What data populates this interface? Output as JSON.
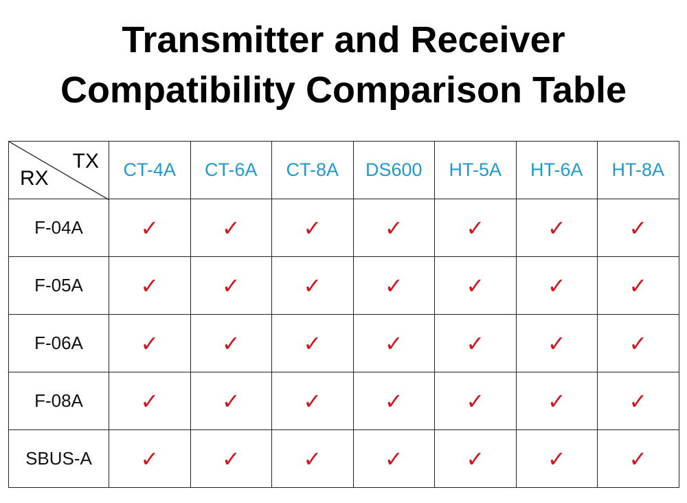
{
  "header": {
    "title_lines": [
      "Transmitter and Receiver",
      "Compatibility Comparison Table"
    ]
  },
  "table": {
    "corner_tx": "TX",
    "corner_rx": "RX",
    "columns": [
      "CT-4A",
      "CT-6A",
      "CT-8A",
      "DS600",
      "HT-5A",
      "HT-6A",
      "HT-8A"
    ],
    "rows": [
      {
        "label": "F-04A",
        "cells": [
          "✓",
          "✓",
          "✓",
          "✓",
          "✓",
          "✓",
          "✓"
        ]
      },
      {
        "label": "F-05A",
        "cells": [
          "✓",
          "✓",
          "✓",
          "✓",
          "✓",
          "✓",
          "✓"
        ]
      },
      {
        "label": "F-06A",
        "cells": [
          "✓",
          "✓",
          "✓",
          "✓",
          "✓",
          "✓",
          "✓"
        ]
      },
      {
        "label": "F-08A",
        "cells": [
          "✓",
          "✓",
          "✓",
          "✓",
          "✓",
          "✓",
          "✓"
        ]
      },
      {
        "label": "SBUS-A",
        "cells": [
          "✓",
          "✓",
          "✓",
          "✓",
          "✓",
          "✓",
          "✓"
        ]
      }
    ]
  }
}
